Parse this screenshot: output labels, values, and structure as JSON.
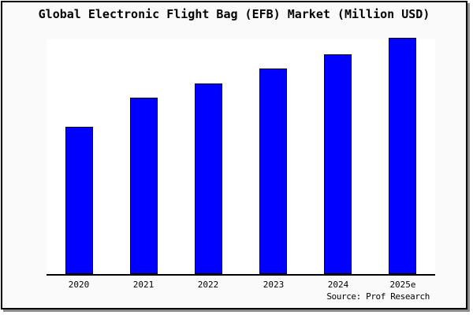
{
  "chart_data": {
    "type": "bar",
    "title": "Global Electronic Flight Bag (EFB) Market (Million USD)",
    "categories": [
      "2020",
      "2021",
      "2022",
      "2023",
      "2024",
      "2025e"
    ],
    "values": [
      62.3,
      74.5,
      80.8,
      87.1,
      93.0,
      100.0
    ],
    "values_unit": "relative bar height, percent of 2025e (no y-axis tick labels shown)",
    "xlabel": "",
    "ylabel": "",
    "ylim": [
      0,
      100
    ],
    "grid": false,
    "legend": false,
    "y_axis_visible": false,
    "bar_color": "#0000ff",
    "bar_border_color": "#000000",
    "axis_color": "#000000",
    "background_color": "#fafafa",
    "plot_background_color": "#ffffff",
    "frame_border_color": "#000000",
    "frame_shadow_color": "#8c8c8c"
  },
  "source": {
    "text": "Source: Prof Research"
  }
}
